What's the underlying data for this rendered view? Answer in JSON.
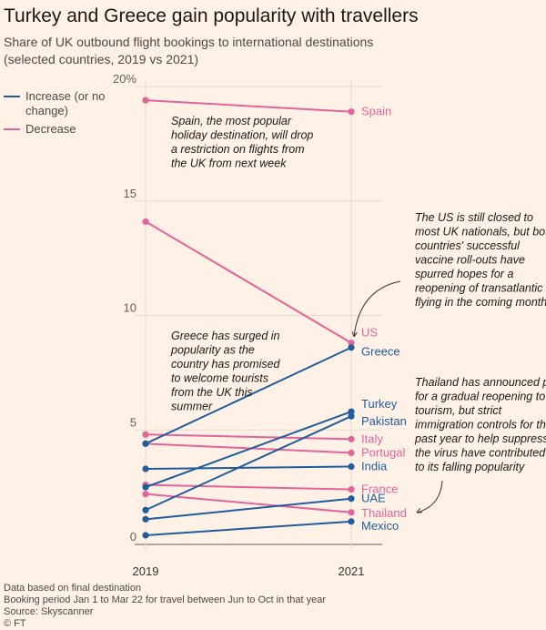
{
  "title": "Turkey and Greece gain popularity with travellers",
  "subtitle": "Share of UK outbound flight bookings to international destinations (selected countries, 2019 vs 2021)",
  "legend": [
    {
      "label": "Increase (or no change)",
      "color": "#1f5d9c"
    },
    {
      "label": "Decrease",
      "color": "#e3649a"
    }
  ],
  "chart_data": {
    "type": "line",
    "x": [
      "2019",
      "2021"
    ],
    "ylim": [
      0,
      20
    ],
    "yticks": [
      0,
      5,
      10,
      15,
      20
    ],
    "ytick_labels": [
      "0",
      "5",
      "10",
      "15",
      "20%"
    ],
    "grid": true,
    "series": [
      {
        "name": "Spain",
        "values": [
          19.4,
          18.9
        ],
        "direction": "decrease"
      },
      {
        "name": "US",
        "values": [
          14.1,
          8.8
        ],
        "direction": "decrease"
      },
      {
        "name": "Greece",
        "values": [
          4.4,
          8.6
        ],
        "direction": "increase"
      },
      {
        "name": "Turkey",
        "values": [
          2.5,
          5.8
        ],
        "direction": "increase"
      },
      {
        "name": "Pakistan",
        "values": [
          1.5,
          5.6
        ],
        "direction": "increase"
      },
      {
        "name": "Italy",
        "values": [
          4.8,
          4.6
        ],
        "direction": "decrease"
      },
      {
        "name": "Portugal",
        "values": [
          4.4,
          4.0
        ],
        "direction": "decrease"
      },
      {
        "name": "India",
        "values": [
          3.3,
          3.4
        ],
        "direction": "increase"
      },
      {
        "name": "France",
        "values": [
          2.6,
          2.4
        ],
        "direction": "decrease"
      },
      {
        "name": "UAE",
        "values": [
          1.1,
          2.0
        ],
        "direction": "increase"
      },
      {
        "name": "Thailand",
        "values": [
          2.2,
          1.4
        ],
        "direction": "decrease"
      },
      {
        "name": "Mexico",
        "values": [
          0.4,
          1.0
        ],
        "direction": "increase"
      }
    ],
    "annotations": [
      "Spain, the most popular holiday destination, will drop a restriction on flights from the UK from next week",
      "The US is still closed to most UK nationals, but both countries' successful vaccine roll-outs have spurred hopes for a reopening of transatlantic flying in the coming months",
      "Greece has surged in popularity as the country has promised to welcome tourists from the UK this summer",
      "Thailand has announced plans for a gradual reopening to tourism, but strict immigration controls for the past year to help suppress the virus have contributed to its falling popularity"
    ]
  },
  "footnotes": [
    "Data based on final destination",
    "Booking period Jan 1 to Mar 22 for travel between Jun to Oct in that year",
    "Source: Skyscanner",
    "© FT"
  ]
}
